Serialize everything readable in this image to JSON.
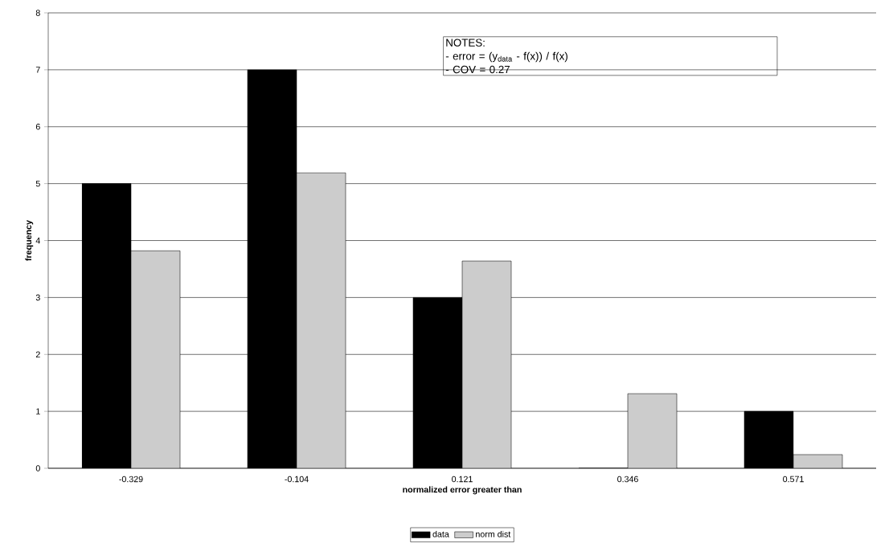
{
  "chart_data": {
    "type": "bar",
    "xlabel": "normalized error greater than",
    "ylabel": "frequency",
    "categories": [
      "-0.329",
      "-0.104",
      "0.121",
      "0.346",
      "0.571"
    ],
    "series": [
      {
        "name": "data",
        "color": "#000000",
        "values": [
          5,
          7,
          3,
          0,
          1
        ]
      },
      {
        "name": "norm dist",
        "color": "#cccccc",
        "values": [
          3.82,
          5.19,
          3.64,
          1.31,
          0.24
        ]
      }
    ],
    "ylim": [
      0,
      8
    ],
    "yticks": [
      0,
      1,
      2,
      3,
      4,
      5,
      6,
      7,
      8
    ],
    "grid": "y",
    "legend": "bottom",
    "annotations": [
      "NOTES:",
      "- error = (y$_{data}$ - f(x)) / f(x)",
      "- COV = 0.27"
    ]
  }
}
